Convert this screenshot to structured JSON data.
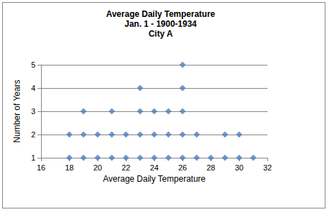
{
  "chart_data": {
    "type": "scatter",
    "title": "Average Daily Temperature\nJan. 1 - 1900-1934\nCity A",
    "x_label": "Average Daily Temperature",
    "y_label": "Number of Years",
    "x": [
      18,
      18,
      19,
      19,
      19,
      20,
      20,
      21,
      21,
      21,
      22,
      22,
      23,
      23,
      23,
      23,
      24,
      24,
      24,
      25,
      25,
      25,
      26,
      26,
      26,
      26,
      26,
      27,
      27,
      28,
      29,
      29,
      30,
      30,
      31
    ],
    "values": [
      1,
      2,
      1,
      2,
      3,
      1,
      2,
      1,
      2,
      3,
      1,
      2,
      1,
      2,
      3,
      4,
      1,
      2,
      3,
      1,
      2,
      3,
      1,
      2,
      3,
      4,
      5,
      1,
      2,
      1,
      1,
      2,
      1,
      2,
      1
    ],
    "color": "#4a7ebb",
    "marker": "diamond",
    "xlim": [
      16,
      32
    ],
    "xticks": [
      16,
      18,
      20,
      22,
      24,
      26,
      28,
      30,
      32
    ],
    "ylim": [
      1,
      5
    ],
    "yticks": [
      1,
      2,
      3,
      4,
      5
    ],
    "grid": true
  }
}
